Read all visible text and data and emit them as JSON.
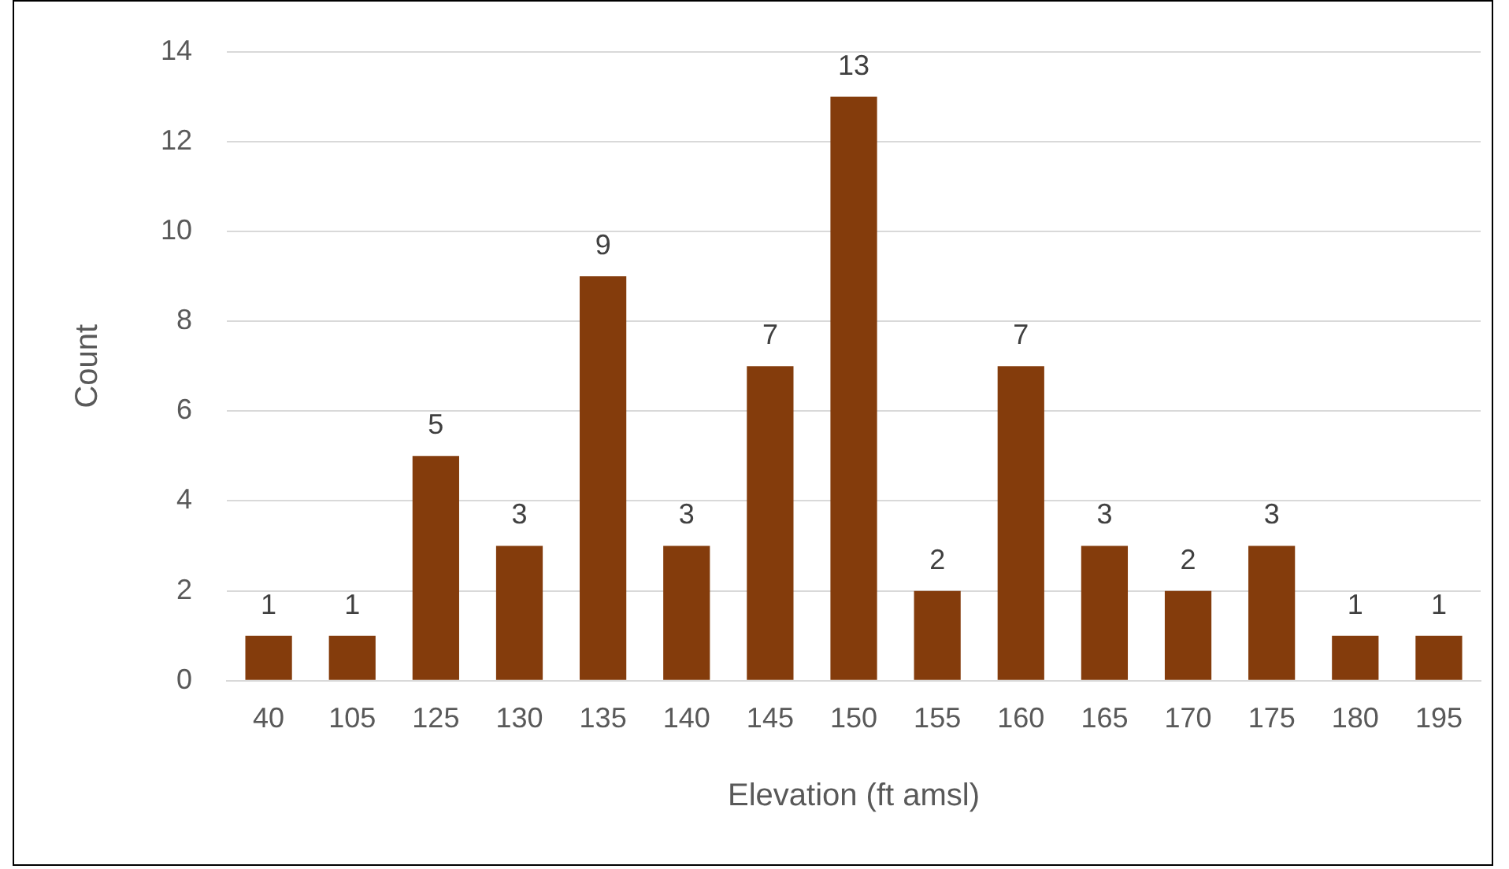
{
  "chart_data": {
    "type": "bar",
    "xlabel": "Elevation (ft amsl)",
    "ylabel": "Count",
    "categories": [
      "40",
      "105",
      "125",
      "130",
      "135",
      "140",
      "145",
      "150",
      "155",
      "160",
      "165",
      "170",
      "175",
      "180",
      "195"
    ],
    "values": [
      1,
      1,
      5,
      3,
      9,
      3,
      7,
      13,
      2,
      7,
      3,
      2,
      3,
      1,
      1
    ],
    "color": "#843c0c",
    "ylim": [
      0,
      14
    ],
    "yticks": [
      0,
      2,
      4,
      6,
      8,
      10,
      12,
      14
    ],
    "grid": "y",
    "data_labels": true,
    "legend": false
  }
}
